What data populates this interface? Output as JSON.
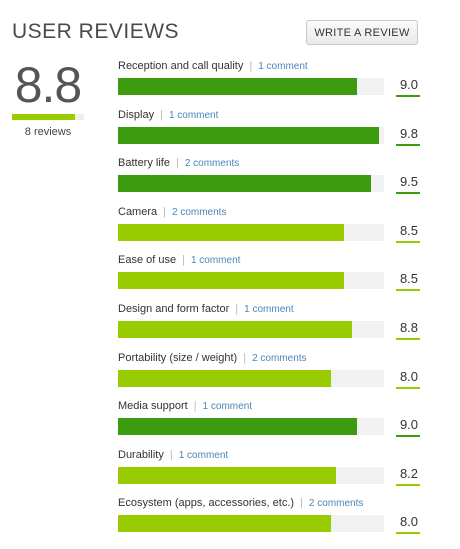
{
  "header": {
    "title": "USER REVIEWS",
    "write_review_label": "WRITE A REVIEW"
  },
  "overall": {
    "score": "8.8",
    "score_value": 8.8,
    "max": 10,
    "reviews_label": "8 reviews"
  },
  "colors": {
    "high": "#3c9b0e",
    "medium": "#99cc00",
    "track": "#f1f1f1",
    "link": "#4a86b8"
  },
  "categories": [
    {
      "label": "Reception and call quality",
      "comments": "1 comment",
      "score": "9.0",
      "value": 9.0,
      "level": "high"
    },
    {
      "label": "Display",
      "comments": "1 comment",
      "score": "9.8",
      "value": 9.8,
      "level": "high"
    },
    {
      "label": "Battery life",
      "comments": "2 comments",
      "score": "9.5",
      "value": 9.5,
      "level": "high"
    },
    {
      "label": "Camera",
      "comments": "2 comments",
      "score": "8.5",
      "value": 8.5,
      "level": "medium"
    },
    {
      "label": "Ease of use",
      "comments": "1 comment",
      "score": "8.5",
      "value": 8.5,
      "level": "medium"
    },
    {
      "label": "Design and form factor",
      "comments": "1 comment",
      "score": "8.8",
      "value": 8.8,
      "level": "medium"
    },
    {
      "label": "Portability (size / weight)",
      "comments": "2 comments",
      "score": "8.0",
      "value": 8.0,
      "level": "medium"
    },
    {
      "label": "Media support",
      "comments": "1 comment",
      "score": "9.0",
      "value": 9.0,
      "level": "high"
    },
    {
      "label": "Durability",
      "comments": "1 comment",
      "score": "8.2",
      "value": 8.2,
      "level": "medium"
    },
    {
      "label": "Ecosystem (apps, accessories, etc.)",
      "comments": "2 comments",
      "score": "8.0",
      "value": 8.0,
      "level": "medium"
    }
  ]
}
